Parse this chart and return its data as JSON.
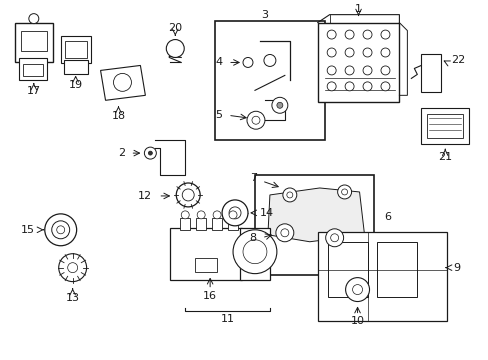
{
  "background_color": "#ffffff",
  "line_color": "#1a1a1a",
  "figsize": [
    4.89,
    3.6
  ],
  "dpi": 100
}
